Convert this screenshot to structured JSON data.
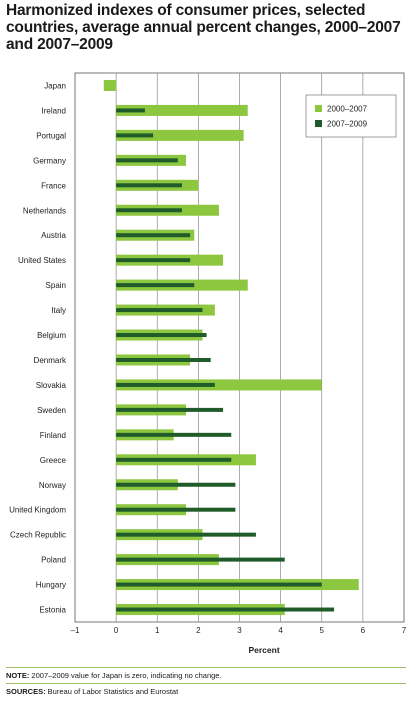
{
  "title": "Harmonized indexes of consumer prices, selected countries, average annual percent changes, 2000–2007 and 2007–2009",
  "note": {
    "label": "NOTE:",
    "text": " 2007–2009 value for Japan is zero, indicating no change."
  },
  "sources": {
    "label": "SOURCES:",
    "text": " Bureau of Labor Statistics and Eurostat"
  },
  "colors": {
    "series1": "#8dc63f",
    "series2": "#1f5c2a",
    "grid": "#8a8a8a",
    "rule": "#9fbf6a"
  },
  "chart_data": {
    "type": "bar",
    "orientation": "horizontal",
    "xlabel": "Percent",
    "xlim": [
      -1,
      7
    ],
    "ticks": [
      -1,
      0,
      1,
      2,
      3,
      4,
      5,
      6,
      7
    ],
    "tick_labels": [
      "–1",
      "0",
      "1",
      "2",
      "3",
      "4",
      "5",
      "6",
      "7"
    ],
    "legend_position": "top-right",
    "grid": true,
    "categories": [
      "Japan",
      "Ireland",
      "Portugal",
      "Germany",
      "France",
      "Netherlands",
      "Austria",
      "United States",
      "Spain",
      "Italy",
      "Belgium",
      "Denmark",
      "Slovakia",
      "Sweden",
      "Finland",
      "Greece",
      "Norway",
      "United Kingdom",
      "Czech Republic",
      "Poland",
      "Hungary",
      "Estonia"
    ],
    "series": [
      {
        "name": "2000–2007",
        "values": [
          -0.3,
          3.2,
          3.1,
          1.7,
          2.0,
          2.5,
          1.9,
          2.6,
          3.2,
          2.4,
          2.1,
          1.8,
          5.0,
          1.7,
          1.4,
          3.4,
          1.5,
          1.7,
          2.1,
          2.5,
          5.9,
          4.1
        ]
      },
      {
        "name": "2007–2009",
        "values": [
          0.0,
          0.7,
          0.9,
          1.5,
          1.6,
          1.6,
          1.8,
          1.8,
          1.9,
          2.1,
          2.2,
          2.3,
          2.4,
          2.6,
          2.8,
          2.8,
          2.9,
          2.9,
          3.4,
          4.1,
          5.0,
          5.3
        ]
      }
    ]
  }
}
